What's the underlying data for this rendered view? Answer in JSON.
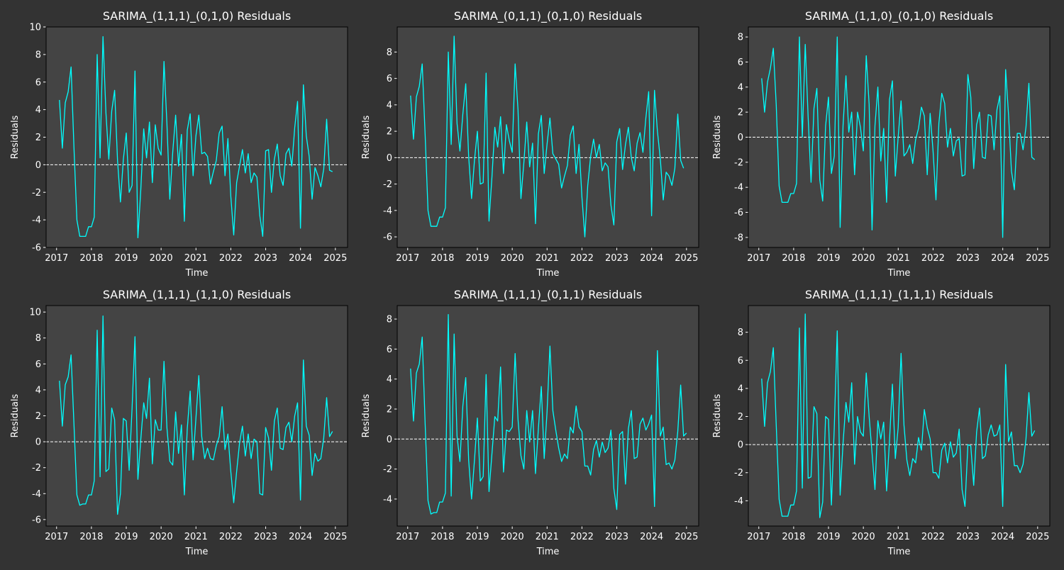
{
  "colors": {
    "figure_bg": "#333333",
    "axes_bg": "#444444",
    "line": "#00ffff",
    "zero_line": "#ffffff",
    "text": "#ffffff"
  },
  "chart_data": [
    {
      "type": "line",
      "title": "SARIMA_(1,1,1)_(0,1,0) Residuals",
      "xlabel": "Time",
      "ylabel": "Residuals",
      "xlim": [
        2016.7,
        2025.35
      ],
      "ylim": [
        -6,
        10
      ],
      "xticks": [
        2017,
        2018,
        2019,
        2020,
        2021,
        2022,
        2023,
        2024,
        2025
      ],
      "yticks": [
        -6,
        -4,
        -2,
        0,
        2,
        4,
        6,
        8,
        10
      ],
      "hline": 0,
      "x_start": 2017.083,
      "x_step": 0.08333,
      "values": [
        4.7,
        1.2,
        4.5,
        5.3,
        7.1,
        1.2,
        -4.0,
        -5.2,
        -5.2,
        -5.2,
        -4.5,
        -4.5,
        -3.8,
        8.0,
        0.5,
        9.3,
        3.8,
        0.4,
        3.9,
        5.4,
        0.3,
        -2.7,
        0.4,
        2.3,
        -2.0,
        -1.5,
        6.8,
        -5.3,
        -1.8,
        2.6,
        0.5,
        3.1,
        -1.3,
        2.9,
        1.2,
        0.7,
        7.5,
        3.0,
        -2.5,
        0.9,
        3.6,
        -0.1,
        2.2,
        -4.1,
        2.5,
        3.7,
        -0.8,
        2.1,
        3.6,
        0.8,
        0.9,
        0.6,
        -1.4,
        -0.5,
        0.3,
        2.3,
        2.8,
        -0.8,
        1.9,
        -2.3,
        -5.1,
        -1.3,
        -0.1,
        1.1,
        -0.6,
        0.8,
        -1.3,
        -0.6,
        -0.9,
        -3.7,
        -5.2,
        1.0,
        1.1,
        -2.0,
        0.4,
        1.5,
        -0.8,
        -1.5,
        0.8,
        1.2,
        -0.1,
        2.7,
        4.6,
        -4.6,
        5.8,
        2.1,
        0.6,
        -2.5,
        -0.2,
        -0.8,
        -1.6,
        -0.3,
        3.3,
        -0.4,
        -0.5
      ]
    },
    {
      "type": "line",
      "title": "SARIMA_(0,1,1)_(0,1,0) Residuals",
      "xlabel": "Time",
      "ylabel": "Residuals",
      "xlim": [
        2016.7,
        2025.35
      ],
      "ylim": [
        -6.8,
        9.9
      ],
      "xticks": [
        2017,
        2018,
        2019,
        2020,
        2021,
        2022,
        2023,
        2024,
        2025
      ],
      "yticks": [
        -6,
        -4,
        -2,
        0,
        2,
        4,
        6,
        8
      ],
      "hline": 0,
      "x_start": 2017.083,
      "x_step": 0.08333,
      "values": [
        4.7,
        1.4,
        4.6,
        5.4,
        7.1,
        1.8,
        -4.0,
        -5.2,
        -5.2,
        -5.2,
        -4.5,
        -4.5,
        -3.8,
        8.0,
        1.0,
        9.2,
        2.6,
        0.5,
        3.3,
        5.6,
        0.1,
        -3.1,
        -0.2,
        2.0,
        -2.0,
        -1.9,
        6.4,
        -4.8,
        -1.5,
        2.3,
        0.8,
        3.1,
        -1.2,
        2.5,
        1.3,
        0.4,
        7.1,
        3.6,
        -3.1,
        -0.4,
        2.7,
        -0.7,
        1.1,
        -5.0,
        1.8,
        3.2,
        -1.2,
        1.0,
        3.0,
        0.3,
        -0.1,
        -0.5,
        -2.3,
        -1.4,
        -0.6,
        1.7,
        2.4,
        -1.2,
        1.0,
        -3.0,
        -6.0,
        -2.1,
        0.1,
        1.4,
        0.0,
        1.0,
        -1.0,
        -0.4,
        -0.7,
        -3.6,
        -5.1,
        1.2,
        2.2,
        -0.9,
        1.0,
        2.3,
        0.0,
        -1.0,
        1.1,
        1.9,
        0.4,
        3.0,
        5.0,
        -4.4,
        5.1,
        2.0,
        -0.1,
        -3.2,
        -1.1,
        -1.4,
        -2.1,
        -0.8,
        3.3,
        -0.2,
        -0.8
      ]
    },
    {
      "type": "line",
      "title": "SARIMA_(1,1,0)_(0,1,0) Residuals",
      "xlabel": "Time",
      "ylabel": "Residuals",
      "xlim": [
        2016.7,
        2025.35
      ],
      "ylim": [
        -8.8,
        8.8
      ],
      "xticks": [
        2017,
        2018,
        2019,
        2020,
        2021,
        2022,
        2023,
        2024,
        2025
      ],
      "yticks": [
        -8,
        -6,
        -4,
        -2,
        0,
        2,
        4,
        6,
        8
      ],
      "hline": 0,
      "x_start": 2017.083,
      "x_step": 0.08333,
      "values": [
        4.7,
        2.0,
        4.4,
        5.5,
        7.1,
        2.6,
        -3.9,
        -5.2,
        -5.2,
        -5.2,
        -4.5,
        -4.5,
        -3.7,
        8.0,
        0.0,
        7.4,
        1.6,
        -3.6,
        2.3,
        3.9,
        -3.4,
        -5.1,
        0.9,
        3.2,
        -2.9,
        -1.5,
        8.0,
        -7.2,
        0.9,
        4.9,
        0.4,
        2.0,
        -3.0,
        2.0,
        0.8,
        -1.1,
        6.5,
        2.6,
        -7.4,
        0.9,
        4.0,
        -1.9,
        0.7,
        -5.2,
        3.0,
        4.5,
        -3.1,
        0.0,
        2.9,
        -1.5,
        -1.2,
        -0.6,
        -2.1,
        -0.2,
        0.7,
        2.4,
        1.7,
        -3.0,
        1.9,
        -1.1,
        -5.0,
        1.1,
        3.5,
        2.7,
        -0.8,
        0.7,
        -1.5,
        -0.3,
        -0.1,
        -3.1,
        -3.0,
        5.0,
        3.2,
        -2.5,
        1.0,
        2.0,
        -1.6,
        -1.7,
        1.8,
        1.7,
        -1.0,
        2.2,
        3.3,
        -8.0,
        5.4,
        1.8,
        -2.7,
        -4.2,
        0.3,
        0.3,
        -1.0,
        0.8,
        4.3,
        -1.6,
        -1.8
      ]
    },
    {
      "type": "line",
      "title": "SARIMA_(1,1,1)_(1,1,0) Residuals",
      "xlabel": "Time",
      "ylabel": "Residuals",
      "xlim": [
        2016.7,
        2025.35
      ],
      "ylim": [
        -6.5,
        10.5
      ],
      "xticks": [
        2017,
        2018,
        2019,
        2020,
        2021,
        2022,
        2023,
        2024,
        2025
      ],
      "yticks": [
        -6,
        -4,
        -2,
        0,
        2,
        4,
        6,
        8,
        10
      ],
      "hline": 0,
      "x_start": 2017.083,
      "x_step": 0.08333,
      "values": [
        4.7,
        1.2,
        4.4,
        5.0,
        6.7,
        1.3,
        -4.1,
        -4.9,
        -4.8,
        -4.8,
        -4.1,
        -4.1,
        -3.0,
        8.6,
        -2.7,
        9.7,
        -2.3,
        -2.1,
        2.6,
        1.7,
        -5.6,
        -4.0,
        1.8,
        1.6,
        -2.2,
        2.6,
        8.1,
        -2.9,
        0.2,
        3.0,
        1.8,
        4.9,
        -1.7,
        1.7,
        0.9,
        0.9,
        6.2,
        1.1,
        -1.5,
        -1.8,
        2.3,
        -0.9,
        1.3,
        -4.1,
        1.0,
        3.9,
        -1.4,
        1.8,
        5.1,
        0.4,
        -1.3,
        -0.5,
        -1.3,
        -1.4,
        -0.3,
        0.4,
        2.7,
        -0.6,
        0.6,
        -2.3,
        -4.7,
        -2.3,
        -0.1,
        1.2,
        -1.1,
        0.6,
        -1.3,
        0.2,
        0.0,
        -4.0,
        -4.1,
        1.1,
        0.3,
        -2.2,
        1.6,
        2.6,
        -0.5,
        -0.6,
        1.1,
        1.5,
        0.0,
        2.0,
        3.0,
        -4.5,
        6.3,
        1.2,
        0.5,
        -2.6,
        -0.9,
        -1.5,
        -1.3,
        0.3,
        3.4,
        0.4,
        0.8
      ]
    },
    {
      "type": "line",
      "title": "SARIMA_(1,1,1)_(0,1,1) Residuals",
      "xlabel": "Time",
      "ylabel": "Residuals",
      "xlim": [
        2016.7,
        2025.35
      ],
      "ylim": [
        -5.8,
        8.9
      ],
      "xticks": [
        2017,
        2018,
        2019,
        2020,
        2021,
        2022,
        2023,
        2024,
        2025
      ],
      "yticks": [
        -4,
        -2,
        0,
        2,
        4,
        6,
        8
      ],
      "hline": 0,
      "x_start": 2017.083,
      "x_step": 0.08333,
      "values": [
        4.7,
        1.2,
        4.4,
        5.0,
        6.8,
        1.1,
        -4.1,
        -5.0,
        -4.9,
        -4.9,
        -4.2,
        -4.2,
        -3.6,
        8.3,
        -3.8,
        7.0,
        0.2,
        -1.5,
        2.2,
        4.1,
        -1.4,
        -4.0,
        -1.4,
        1.4,
        -2.8,
        -2.5,
        4.3,
        -3.5,
        -1.0,
        1.5,
        1.2,
        4.8,
        -2.2,
        0.6,
        0.5,
        0.8,
        5.7,
        1.3,
        -1.1,
        -2.0,
        1.9,
        -0.2,
        1.9,
        -2.3,
        0.7,
        3.5,
        -1.3,
        1.8,
        6.2,
        1.9,
        0.6,
        -0.6,
        -1.5,
        -1.0,
        -1.3,
        0.8,
        0.4,
        2.2,
        0.8,
        0.5,
        -1.8,
        -1.8,
        -2.4,
        -0.7,
        -0.1,
        -1.2,
        -0.2,
        -0.9,
        -0.6,
        0.6,
        -3.3,
        -4.7,
        0.3,
        0.5,
        -3.0,
        0.7,
        1.9,
        -1.3,
        -1.2,
        1.0,
        1.4,
        0.6,
        1.0,
        1.6,
        -4.5,
        5.9,
        0.2,
        0.8,
        -1.7,
        -1.6,
        -2.0,
        -1.4,
        0.5,
        3.6,
        0.2,
        0.4
      ]
    },
    {
      "type": "line",
      "title": "SARIMA_(1,1,1)_(1,1,1) Residuals",
      "xlabel": "Time",
      "ylabel": "Residuals",
      "xlim": [
        2016.7,
        2025.35
      ],
      "ylim": [
        -5.8,
        9.9
      ],
      "xticks": [
        2017,
        2018,
        2019,
        2020,
        2021,
        2022,
        2023,
        2024,
        2025
      ],
      "yticks": [
        -4,
        -2,
        0,
        2,
        4,
        6,
        8
      ],
      "hline": 0,
      "x_start": 2017.083,
      "x_step": 0.08333,
      "values": [
        4.7,
        1.3,
        4.4,
        5.2,
        6.9,
        1.4,
        -3.9,
        -5.1,
        -5.1,
        -5.1,
        -4.3,
        -4.3,
        -3.3,
        8.3,
        -3.1,
        9.3,
        -2.4,
        -2.3,
        2.7,
        2.2,
        -5.2,
        -4.1,
        2.0,
        1.8,
        -4.3,
        1.3,
        8.1,
        -3.6,
        0.1,
        3.0,
        1.6,
        4.4,
        -1.4,
        2.0,
        0.9,
        0.6,
        5.1,
        2.0,
        -0.6,
        -3.2,
        1.7,
        0.4,
        1.6,
        -3.3,
        0.3,
        4.3,
        -1.0,
        1.2,
        6.5,
        1.4,
        -1.1,
        -2.2,
        -1.0,
        -1.3,
        0.5,
        -0.4,
        2.5,
        1.2,
        0.4,
        -2.0,
        -2.0,
        -2.4,
        -0.4,
        0.1,
        -1.3,
        0.2,
        -0.9,
        -0.6,
        1.1,
        -3.2,
        -4.4,
        0.0,
        -0.1,
        -2.9,
        0.9,
        2.6,
        -1.0,
        -0.8,
        0.7,
        1.4,
        0.6,
        0.7,
        1.4,
        -4.4,
        5.7,
        0.2,
        0.9,
        -1.5,
        -1.5,
        -2.0,
        -1.4,
        0.4,
        3.7,
        0.6,
        1.0
      ]
    }
  ]
}
